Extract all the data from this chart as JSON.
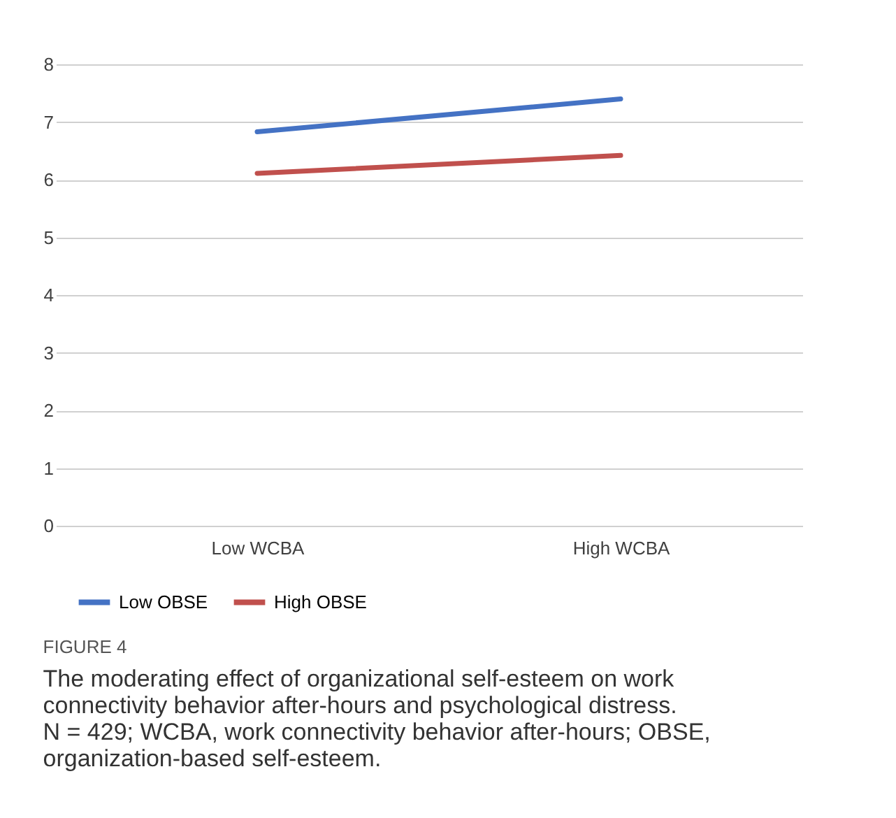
{
  "chart_data": {
    "type": "line",
    "categories": [
      "Low WCBA",
      "High WCBA"
    ],
    "series": [
      {
        "name": "Low OBSE",
        "color": "#4472c4",
        "values": [
          6.83,
          7.4
        ]
      },
      {
        "name": "High OBSE",
        "color": "#c0504d",
        "values": [
          6.11,
          6.42
        ]
      }
    ],
    "ylim": [
      0,
      8
    ],
    "yticks": [
      0,
      1,
      2,
      3,
      4,
      5,
      6,
      7,
      8
    ],
    "grid": "y",
    "legend": "bottom",
    "marker": "none",
    "line_style": "solid",
    "annotations": [
      "FIGURE 4",
      "The moderating effect of organizational self-esteem on work connectivity behavior after-hours and psychological distress. N = 429; WCBA, work connectivity behavior after-hours; OBSE, organization-based self-esteem."
    ]
  }
}
